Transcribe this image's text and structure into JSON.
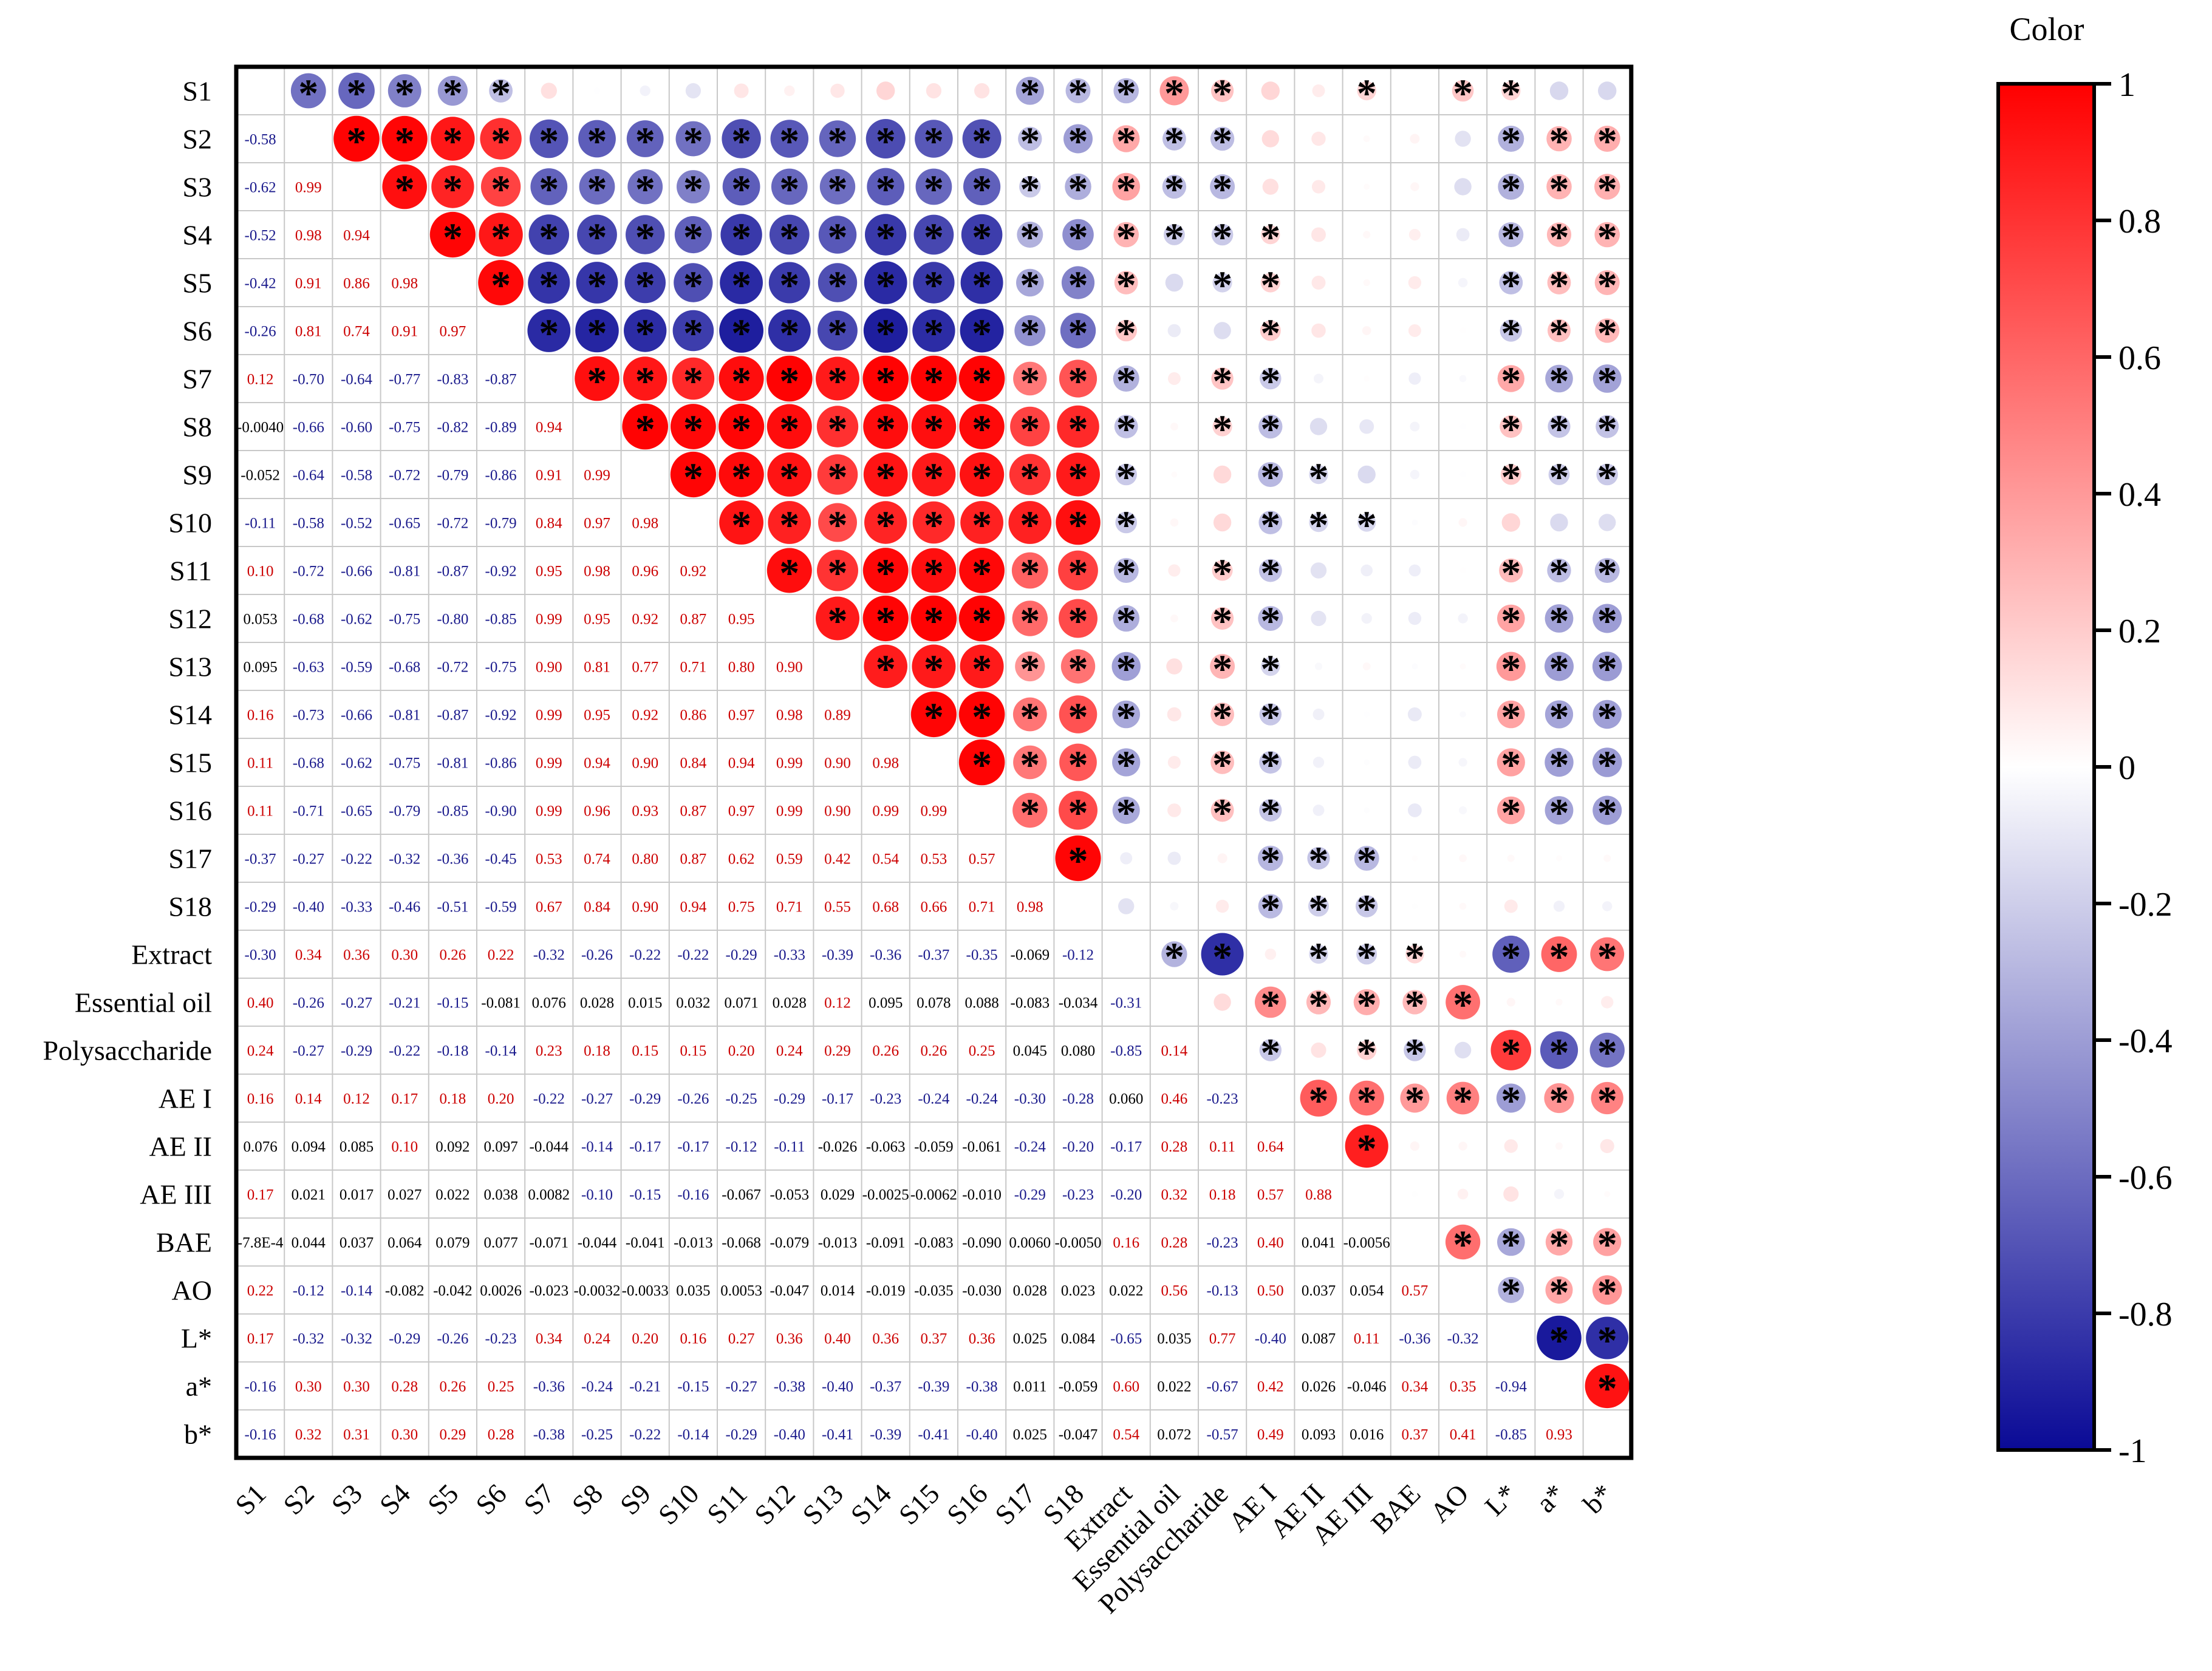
{
  "chart_data": {
    "type": "heatmap",
    "title": "",
    "variables": [
      "S1",
      "S2",
      "S3",
      "S4",
      "S5",
      "S6",
      "S7",
      "S8",
      "S9",
      "S10",
      "S11",
      "S12",
      "S13",
      "S14",
      "S15",
      "S16",
      "S17",
      "S18",
      "Extract",
      "Essential oil",
      "Polysaccharide",
      "AE I",
      "AE II",
      "AE III",
      "BAE",
      "AO",
      "L*",
      "a*",
      "b*"
    ],
    "lower_labels": [
      [],
      [
        "-0.58"
      ],
      [
        "-0.62",
        "0.99"
      ],
      [
        "-0.52",
        "0.98",
        "0.94"
      ],
      [
        "-0.42",
        "0.91",
        "0.86",
        "0.98"
      ],
      [
        "-0.26",
        "0.81",
        "0.74",
        "0.91",
        "0.97"
      ],
      [
        "0.12",
        "-0.70",
        "-0.64",
        "-0.77",
        "-0.83",
        "-0.87"
      ],
      [
        "-0.0040",
        "-0.66",
        "-0.60",
        "-0.75",
        "-0.82",
        "-0.89",
        "0.94"
      ],
      [
        "-0.052",
        "-0.64",
        "-0.58",
        "-0.72",
        "-0.79",
        "-0.86",
        "0.91",
        "0.99"
      ],
      [
        "-0.11",
        "-0.58",
        "-0.52",
        "-0.65",
        "-0.72",
        "-0.79",
        "0.84",
        "0.97",
        "0.98"
      ],
      [
        "0.10",
        "-0.72",
        "-0.66",
        "-0.81",
        "-0.87",
        "-0.92",
        "0.95",
        "0.98",
        "0.96",
        "0.92"
      ],
      [
        "0.053",
        "-0.68",
        "-0.62",
        "-0.75",
        "-0.80",
        "-0.85",
        "0.99",
        "0.95",
        "0.92",
        "0.87",
        "0.95"
      ],
      [
        "0.095",
        "-0.63",
        "-0.59",
        "-0.68",
        "-0.72",
        "-0.75",
        "0.90",
        "0.81",
        "0.77",
        "0.71",
        "0.80",
        "0.90"
      ],
      [
        "0.16",
        "-0.73",
        "-0.66",
        "-0.81",
        "-0.87",
        "-0.92",
        "0.99",
        "0.95",
        "0.92",
        "0.86",
        "0.97",
        "0.98",
        "0.89"
      ],
      [
        "0.11",
        "-0.68",
        "-0.62",
        "-0.75",
        "-0.81",
        "-0.86",
        "0.99",
        "0.94",
        "0.90",
        "0.84",
        "0.94",
        "0.99",
        "0.90",
        "0.98"
      ],
      [
        "0.11",
        "-0.71",
        "-0.65",
        "-0.79",
        "-0.85",
        "-0.90",
        "0.99",
        "0.96",
        "0.93",
        "0.87",
        "0.97",
        "0.99",
        "0.90",
        "0.99",
        "0.99"
      ],
      [
        "-0.37",
        "-0.27",
        "-0.22",
        "-0.32",
        "-0.36",
        "-0.45",
        "0.53",
        "0.74",
        "0.80",
        "0.87",
        "0.62",
        "0.59",
        "0.42",
        "0.54",
        "0.53",
        "0.57"
      ],
      [
        "-0.29",
        "-0.40",
        "-0.33",
        "-0.46",
        "-0.51",
        "-0.59",
        "0.67",
        "0.84",
        "0.90",
        "0.94",
        "0.75",
        "0.71",
        "0.55",
        "0.68",
        "0.66",
        "0.71",
        "0.98"
      ],
      [
        "-0.30",
        "0.34",
        "0.36",
        "0.30",
        "0.26",
        "0.22",
        "-0.32",
        "-0.26",
        "-0.22",
        "-0.22",
        "-0.29",
        "-0.33",
        "-0.39",
        "-0.36",
        "-0.37",
        "-0.35",
        "-0.069",
        "-0.12"
      ],
      [
        "0.40",
        "-0.26",
        "-0.27",
        "-0.21",
        "-0.15",
        "-0.081",
        "0.076",
        "0.028",
        "0.015",
        "0.032",
        "0.071",
        "0.028",
        "0.12",
        "0.095",
        "0.078",
        "0.088",
        "-0.083",
        "-0.034",
        "-0.31"
      ],
      [
        "0.24",
        "-0.27",
        "-0.29",
        "-0.22",
        "-0.18",
        "-0.14",
        "0.23",
        "0.18",
        "0.15",
        "0.15",
        "0.20",
        "0.24",
        "0.29",
        "0.26",
        "0.26",
        "0.25",
        "0.045",
        "0.080",
        "-0.85",
        "0.14"
      ],
      [
        "0.16",
        "0.14",
        "0.12",
        "0.17",
        "0.18",
        "0.20",
        "-0.22",
        "-0.27",
        "-0.29",
        "-0.26",
        "-0.25",
        "-0.29",
        "-0.17",
        "-0.23",
        "-0.24",
        "-0.24",
        "-0.30",
        "-0.28",
        "0.060",
        "0.46",
        "-0.23"
      ],
      [
        "0.076",
        "0.094",
        "0.085",
        "0.10",
        "0.092",
        "0.097",
        "-0.044",
        "-0.14",
        "-0.17",
        "-0.17",
        "-0.12",
        "-0.11",
        "-0.026",
        "-0.063",
        "-0.059",
        "-0.061",
        "-0.24",
        "-0.20",
        "-0.17",
        "0.28",
        "0.11",
        "0.64"
      ],
      [
        "0.17",
        "0.021",
        "0.017",
        "0.027",
        "0.022",
        "0.038",
        "0.0082",
        "-0.10",
        "-0.15",
        "-0.16",
        "-0.067",
        "-0.053",
        "0.029",
        "-0.0025",
        "-0.0062",
        "-0.010",
        "-0.29",
        "-0.23",
        "-0.20",
        "0.32",
        "0.18",
        "0.57",
        "0.88"
      ],
      [
        "-7.8E-4",
        "0.044",
        "0.037",
        "0.064",
        "0.079",
        "0.077",
        "-0.071",
        "-0.044",
        "-0.041",
        "-0.013",
        "-0.068",
        "-0.079",
        "-0.013",
        "-0.091",
        "-0.083",
        "-0.090",
        "0.0060",
        "-0.0050",
        "0.16",
        "0.28",
        "-0.23",
        "0.40",
        "0.041",
        "-0.0056"
      ],
      [
        "0.22",
        "-0.12",
        "-0.14",
        "-0.082",
        "-0.042",
        "0.0026",
        "-0.023",
        "-0.0032",
        "-0.0033",
        "0.035",
        "0.0053",
        "-0.047",
        "0.014",
        "-0.019",
        "-0.035",
        "-0.030",
        "0.028",
        "0.023",
        "0.022",
        "0.56",
        "-0.13",
        "0.50",
        "0.037",
        "0.054",
        "0.57"
      ],
      [
        "0.17",
        "-0.32",
        "-0.32",
        "-0.29",
        "-0.26",
        "-0.23",
        "0.34",
        "0.24",
        "0.20",
        "0.16",
        "0.27",
        "0.36",
        "0.40",
        "0.36",
        "0.37",
        "0.36",
        "0.025",
        "0.084",
        "-0.65",
        "0.035",
        "0.77",
        "-0.40",
        "0.087",
        "0.11",
        "-0.36",
        "-0.32"
      ],
      [
        "-0.16",
        "0.30",
        "0.30",
        "0.28",
        "0.26",
        "0.25",
        "-0.36",
        "-0.24",
        "-0.21",
        "-0.15",
        "-0.27",
        "-0.38",
        "-0.40",
        "-0.37",
        "-0.39",
        "-0.38",
        "0.011",
        "-0.059",
        "0.60",
        "0.022",
        "-0.67",
        "0.42",
        "0.026",
        "-0.046",
        "0.34",
        "0.35",
        "-0.94"
      ],
      [
        "-0.16",
        "0.32",
        "0.31",
        "0.30",
        "0.29",
        "0.28",
        "-0.38",
        "-0.25",
        "-0.22",
        "-0.14",
        "-0.29",
        "-0.40",
        "-0.41",
        "-0.39",
        "-0.41",
        "-0.40",
        "0.025",
        "-0.047",
        "0.54",
        "0.072",
        "-0.57",
        "0.49",
        "0.093",
        "0.016",
        "0.37",
        "0.41",
        "-0.85",
        "0.93"
      ]
    ],
    "significant_pairs": [
      [
        0,
        1
      ],
      [
        0,
        2
      ],
      [
        0,
        3
      ],
      [
        0,
        4
      ],
      [
        0,
        5
      ],
      [
        0,
        16
      ],
      [
        0,
        17
      ],
      [
        0,
        18
      ],
      [
        0,
        19
      ],
      [
        0,
        20
      ],
      [
        0,
        23
      ],
      [
        0,
        25
      ],
      [
        0,
        26
      ],
      [
        1,
        2
      ],
      [
        1,
        3
      ],
      [
        1,
        4
      ],
      [
        1,
        5
      ],
      [
        1,
        6
      ],
      [
        1,
        7
      ],
      [
        1,
        8
      ],
      [
        1,
        9
      ],
      [
        1,
        10
      ],
      [
        1,
        11
      ],
      [
        1,
        12
      ],
      [
        1,
        13
      ],
      [
        1,
        14
      ],
      [
        1,
        15
      ],
      [
        1,
        16
      ],
      [
        1,
        17
      ],
      [
        1,
        18
      ],
      [
        1,
        19
      ],
      [
        1,
        20
      ],
      [
        1,
        26
      ],
      [
        1,
        27
      ],
      [
        1,
        28
      ],
      [
        2,
        3
      ],
      [
        2,
        4
      ],
      [
        2,
        5
      ],
      [
        2,
        6
      ],
      [
        2,
        7
      ],
      [
        2,
        8
      ],
      [
        2,
        9
      ],
      [
        2,
        10
      ],
      [
        2,
        11
      ],
      [
        2,
        12
      ],
      [
        2,
        13
      ],
      [
        2,
        14
      ],
      [
        2,
        15
      ],
      [
        2,
        16
      ],
      [
        2,
        17
      ],
      [
        2,
        18
      ],
      [
        2,
        19
      ],
      [
        2,
        20
      ],
      [
        2,
        26
      ],
      [
        2,
        27
      ],
      [
        2,
        28
      ],
      [
        3,
        4
      ],
      [
        3,
        5
      ],
      [
        3,
        6
      ],
      [
        3,
        7
      ],
      [
        3,
        8
      ],
      [
        3,
        9
      ],
      [
        3,
        10
      ],
      [
        3,
        11
      ],
      [
        3,
        12
      ],
      [
        3,
        13
      ],
      [
        3,
        14
      ],
      [
        3,
        15
      ],
      [
        3,
        16
      ],
      [
        3,
        17
      ],
      [
        3,
        18
      ],
      [
        3,
        19
      ],
      [
        3,
        20
      ],
      [
        3,
        21
      ],
      [
        3,
        26
      ],
      [
        3,
        27
      ],
      [
        3,
        28
      ],
      [
        4,
        5
      ],
      [
        4,
        6
      ],
      [
        4,
        7
      ],
      [
        4,
        8
      ],
      [
        4,
        9
      ],
      [
        4,
        10
      ],
      [
        4,
        11
      ],
      [
        4,
        12
      ],
      [
        4,
        13
      ],
      [
        4,
        14
      ],
      [
        4,
        15
      ],
      [
        4,
        16
      ],
      [
        4,
        17
      ],
      [
        4,
        18
      ],
      [
        4,
        20
      ],
      [
        4,
        21
      ],
      [
        4,
        26
      ],
      [
        4,
        27
      ],
      [
        4,
        28
      ],
      [
        5,
        6
      ],
      [
        5,
        7
      ],
      [
        5,
        8
      ],
      [
        5,
        9
      ],
      [
        5,
        10
      ],
      [
        5,
        11
      ],
      [
        5,
        12
      ],
      [
        5,
        13
      ],
      [
        5,
        14
      ],
      [
        5,
        15
      ],
      [
        5,
        16
      ],
      [
        5,
        17
      ],
      [
        5,
        18
      ],
      [
        5,
        21
      ],
      [
        5,
        26
      ],
      [
        5,
        27
      ],
      [
        5,
        28
      ],
      [
        6,
        7
      ],
      [
        6,
        8
      ],
      [
        6,
        9
      ],
      [
        6,
        10
      ],
      [
        6,
        11
      ],
      [
        6,
        12
      ],
      [
        6,
        13
      ],
      [
        6,
        14
      ],
      [
        6,
        15
      ],
      [
        6,
        16
      ],
      [
        6,
        17
      ],
      [
        6,
        18
      ],
      [
        6,
        20
      ],
      [
        6,
        21
      ],
      [
        6,
        26
      ],
      [
        6,
        27
      ],
      [
        6,
        28
      ],
      [
        7,
        8
      ],
      [
        7,
        9
      ],
      [
        7,
        10
      ],
      [
        7,
        11
      ],
      [
        7,
        12
      ],
      [
        7,
        13
      ],
      [
        7,
        14
      ],
      [
        7,
        15
      ],
      [
        7,
        16
      ],
      [
        7,
        17
      ],
      [
        7,
        18
      ],
      [
        7,
        20
      ],
      [
        7,
        21
      ],
      [
        7,
        26
      ],
      [
        7,
        27
      ],
      [
        7,
        28
      ],
      [
        8,
        9
      ],
      [
        8,
        10
      ],
      [
        8,
        11
      ],
      [
        8,
        12
      ],
      [
        8,
        13
      ],
      [
        8,
        14
      ],
      [
        8,
        15
      ],
      [
        8,
        16
      ],
      [
        8,
        17
      ],
      [
        8,
        18
      ],
      [
        8,
        21
      ],
      [
        8,
        22
      ],
      [
        8,
        26
      ],
      [
        8,
        27
      ],
      [
        8,
        28
      ],
      [
        9,
        10
      ],
      [
        9,
        11
      ],
      [
        9,
        12
      ],
      [
        9,
        13
      ],
      [
        9,
        14
      ],
      [
        9,
        15
      ],
      [
        9,
        16
      ],
      [
        9,
        17
      ],
      [
        9,
        18
      ],
      [
        9,
        21
      ],
      [
        9,
        22
      ],
      [
        9,
        23
      ],
      [
        10,
        11
      ],
      [
        10,
        12
      ],
      [
        10,
        13
      ],
      [
        10,
        14
      ],
      [
        10,
        15
      ],
      [
        10,
        16
      ],
      [
        10,
        17
      ],
      [
        10,
        18
      ],
      [
        10,
        20
      ],
      [
        10,
        21
      ],
      [
        10,
        26
      ],
      [
        10,
        27
      ],
      [
        10,
        28
      ],
      [
        11,
        12
      ],
      [
        11,
        13
      ],
      [
        11,
        14
      ],
      [
        11,
        15
      ],
      [
        11,
        16
      ],
      [
        11,
        17
      ],
      [
        11,
        18
      ],
      [
        11,
        20
      ],
      [
        11,
        21
      ],
      [
        11,
        26
      ],
      [
        11,
        27
      ],
      [
        11,
        28
      ],
      [
        12,
        13
      ],
      [
        12,
        14
      ],
      [
        12,
        15
      ],
      [
        12,
        16
      ],
      [
        12,
        17
      ],
      [
        12,
        18
      ],
      [
        12,
        20
      ],
      [
        12,
        21
      ],
      [
        12,
        26
      ],
      [
        12,
        27
      ],
      [
        12,
        28
      ],
      [
        13,
        14
      ],
      [
        13,
        15
      ],
      [
        13,
        16
      ],
      [
        13,
        17
      ],
      [
        13,
        18
      ],
      [
        13,
        20
      ],
      [
        13,
        21
      ],
      [
        13,
        26
      ],
      [
        13,
        27
      ],
      [
        13,
        28
      ],
      [
        14,
        15
      ],
      [
        14,
        16
      ],
      [
        14,
        17
      ],
      [
        14,
        18
      ],
      [
        14,
        20
      ],
      [
        14,
        21
      ],
      [
        14,
        26
      ],
      [
        14,
        27
      ],
      [
        14,
        28
      ],
      [
        15,
        16
      ],
      [
        15,
        17
      ],
      [
        15,
        18
      ],
      [
        15,
        20
      ],
      [
        15,
        21
      ],
      [
        15,
        26
      ],
      [
        15,
        27
      ],
      [
        15,
        28
      ],
      [
        16,
        17
      ],
      [
        16,
        21
      ],
      [
        16,
        22
      ],
      [
        16,
        23
      ],
      [
        17,
        21
      ],
      [
        17,
        22
      ],
      [
        17,
        23
      ],
      [
        18,
        19
      ],
      [
        18,
        20
      ],
      [
        18,
        22
      ],
      [
        18,
        23
      ],
      [
        18,
        24
      ],
      [
        18,
        26
      ],
      [
        18,
        27
      ],
      [
        18,
        28
      ],
      [
        19,
        21
      ],
      [
        19,
        22
      ],
      [
        19,
        23
      ],
      [
        19,
        24
      ],
      [
        19,
        25
      ],
      [
        20,
        21
      ],
      [
        20,
        23
      ],
      [
        20,
        24
      ],
      [
        20,
        26
      ],
      [
        20,
        27
      ],
      [
        20,
        28
      ],
      [
        21,
        22
      ],
      [
        21,
        23
      ],
      [
        21,
        24
      ],
      [
        21,
        25
      ],
      [
        21,
        26
      ],
      [
        21,
        27
      ],
      [
        21,
        28
      ],
      [
        22,
        23
      ],
      [
        24,
        25
      ],
      [
        24,
        26
      ],
      [
        24,
        27
      ],
      [
        24,
        28
      ],
      [
        25,
        26
      ],
      [
        25,
        27
      ],
      [
        25,
        28
      ],
      [
        26,
        27
      ],
      [
        26,
        28
      ],
      [
        27,
        28
      ]
    ],
    "significance_marker": "*",
    "colorbar": {
      "title": "Color",
      "range": [
        -1,
        1
      ],
      "ticks": [
        "1",
        "0.8",
        "0.6",
        "0.4",
        "0.2",
        "0",
        "-0.2",
        "-0.4",
        "-0.6",
        "-0.8",
        "-1"
      ],
      "tick_values": [
        1,
        0.8,
        0.6,
        0.4,
        0.2,
        0,
        -0.2,
        -0.4,
        -0.6,
        -0.8,
        -1
      ]
    },
    "colors": {
      "positive": "#ff0000",
      "neutral": "#ffffff",
      "negative": "#0a0a96",
      "positive_text": "#cc0000",
      "negative_text": "#1a1a8c",
      "neutral_text": "#000000",
      "grid": "#c8c8c8",
      "frame": "#000000"
    }
  }
}
